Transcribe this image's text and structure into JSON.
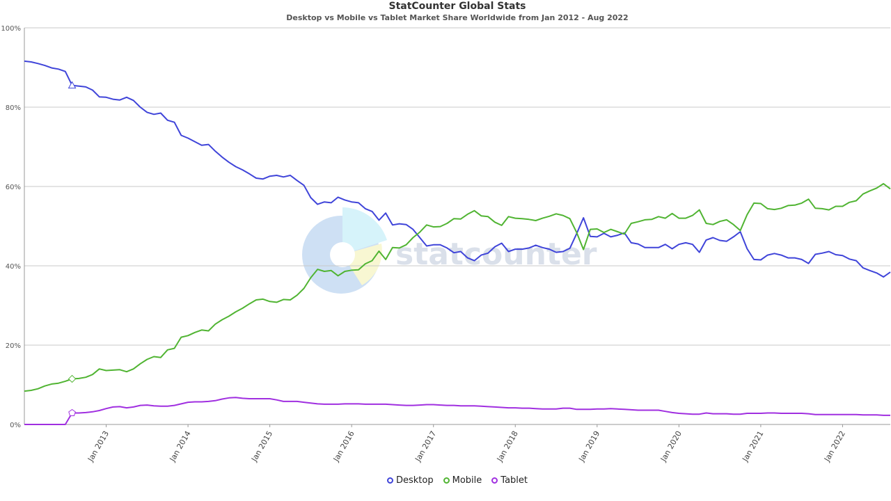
{
  "chart_data": {
    "type": "line",
    "title": "StatCounter Global Stats",
    "subtitle": "Desktop vs Mobile vs Tablet Market Share Worldwide from Jan 2012 - Aug 2022",
    "ylim": [
      0,
      100
    ],
    "yticks": [
      0,
      20,
      40,
      60,
      80,
      100
    ],
    "ytick_labels": [
      "0%",
      "20%",
      "40%",
      "60%",
      "80%",
      "100%"
    ],
    "xticks": [
      "Jan 2013",
      "Jan 2014",
      "Jan 2015",
      "Jan 2016",
      "Jan 2017",
      "Jan 2018",
      "Jan 2019",
      "Jan 2020",
      "Jan 2021",
      "Jan 2022"
    ],
    "x_start": "Jan 2012",
    "x_end": "Aug 2022",
    "grid": true,
    "legend_position": "bottom",
    "watermark": "statcounter",
    "series": [
      {
        "name": "Desktop",
        "color": "#3f44d9",
        "values": [
          91.6,
          91.4,
          91,
          90.5,
          89.9,
          89.6,
          89,
          85.5,
          85.3,
          85.1,
          84.3,
          82.6,
          82.5,
          82,
          81.8,
          82.5,
          81.7,
          80,
          78.7,
          78.2,
          78.5,
          76.7,
          76.2,
          72.9,
          72.2,
          71.3,
          70.4,
          70.6,
          68.9,
          67.4,
          66.1,
          65,
          64.2,
          63.2,
          62.1,
          61.9,
          62.6,
          62.8,
          62.4,
          62.8,
          61.5,
          60.3,
          57.2,
          55.5,
          56.1,
          55.9,
          57.3,
          56.6,
          56.1,
          55.9,
          54.4,
          53.7,
          51.5,
          53.3,
          50.3,
          50.6,
          50.4,
          49.2,
          47.1,
          45,
          45.3,
          45.3,
          44.5,
          43.3,
          43.6,
          42,
          41.3,
          42.7,
          43.2,
          44.8,
          45.7,
          43.6,
          44.2,
          44.2,
          44.5,
          45.2,
          44.6,
          44.2,
          43.4,
          43.6,
          44.4,
          48.1,
          52.1,
          47.4,
          47.3,
          48.2,
          47.3,
          47.7,
          48.3,
          45.8,
          45.5,
          44.6,
          44.6,
          44.6,
          45.4,
          44.3,
          45.4,
          45.8,
          45.4,
          43.4,
          46.5,
          47.1,
          46.4,
          46.2,
          47.3,
          48.6,
          44.3,
          41.6,
          41.5,
          42.7,
          43.1,
          42.7,
          42,
          42,
          41.6,
          40.6,
          42.9,
          43.2,
          43.6,
          42.8,
          42.6,
          41.7,
          41.3,
          39.5,
          38.8,
          38.2,
          37.2,
          38.4
        ]
      },
      {
        "name": "Mobile",
        "color": "#50b432",
        "values": [
          8.4,
          8.6,
          9,
          9.7,
          10.2,
          10.4,
          10.9,
          11.5,
          11.6,
          11.9,
          12.6,
          14,
          13.6,
          13.7,
          13.8,
          13.3,
          14,
          15.3,
          16.4,
          17.1,
          16.9,
          18.8,
          19.2,
          22,
          22.4,
          23.2,
          23.8,
          23.6,
          25.3,
          26.4,
          27.3,
          28.4,
          29.3,
          30.4,
          31.4,
          31.6,
          31,
          30.8,
          31.5,
          31.4,
          32.6,
          34.3,
          37,
          39.1,
          38.6,
          38.8,
          37.5,
          38.6,
          38.9,
          39,
          40.5,
          41.3,
          43.7,
          41.6,
          44.6,
          44.5,
          45.3,
          47.1,
          48.5,
          50.3,
          49.8,
          49.9,
          50.7,
          51.9,
          51.8,
          53,
          53.9,
          52.6,
          52.4,
          51,
          50.2,
          52.4,
          52,
          51.9,
          51.7,
          51.4,
          52,
          52.5,
          53.1,
          52.7,
          51.9,
          48.4,
          44.1,
          49.2,
          49.3,
          48.4,
          49.2,
          48.6,
          48,
          50.7,
          51.1,
          51.6,
          51.7,
          52.4,
          52,
          53.2,
          52,
          52,
          52.7,
          54.1,
          50.7,
          50.4,
          51.2,
          51.6,
          50.4,
          48.9,
          52.9,
          55.8,
          55.7,
          54.4,
          54.2,
          54.5,
          55.2,
          55.3,
          55.8,
          56.8,
          54.5,
          54.4,
          54.1,
          55,
          55,
          56,
          56.4,
          58.1,
          58.9,
          59.6,
          60.7,
          59.4
        ]
      },
      {
        "name": "Tablet",
        "color": "#a02fe0",
        "values": [
          0,
          0,
          0,
          0,
          0,
          0,
          0,
          2.9,
          2.9,
          3,
          3.2,
          3.5,
          4,
          4.4,
          4.5,
          4.2,
          4.4,
          4.8,
          4.9,
          4.7,
          4.6,
          4.6,
          4.8,
          5.2,
          5.6,
          5.7,
          5.7,
          5.8,
          6,
          6.4,
          6.7,
          6.8,
          6.6,
          6.5,
          6.5,
          6.5,
          6.5,
          6.2,
          5.8,
          5.8,
          5.8,
          5.6,
          5.4,
          5.2,
          5.1,
          5.1,
          5.1,
          5.2,
          5.2,
          5.2,
          5.1,
          5.1,
          5.1,
          5.1,
          5,
          4.9,
          4.8,
          4.8,
          4.9,
          5,
          5,
          4.9,
          4.8,
          4.8,
          4.7,
          4.7,
          4.7,
          4.6,
          4.5,
          4.4,
          4.3,
          4.2,
          4.2,
          4.1,
          4.1,
          4,
          3.9,
          3.9,
          3.9,
          4.1,
          4.1,
          3.8,
          3.8,
          3.8,
          3.9,
          3.9,
          4,
          3.9,
          3.8,
          3.7,
          3.6,
          3.6,
          3.6,
          3.6,
          3.3,
          3,
          2.8,
          2.7,
          2.6,
          2.6,
          2.9,
          2.7,
          2.7,
          2.7,
          2.6,
          2.6,
          2.8,
          2.8,
          2.8,
          2.9,
          2.9,
          2.8,
          2.8,
          2.8,
          2.8,
          2.7,
          2.5,
          2.5,
          2.5,
          2.5,
          2.5,
          2.5,
          2.5,
          2.4,
          2.4,
          2.4,
          2.3,
          2.3
        ]
      }
    ]
  }
}
